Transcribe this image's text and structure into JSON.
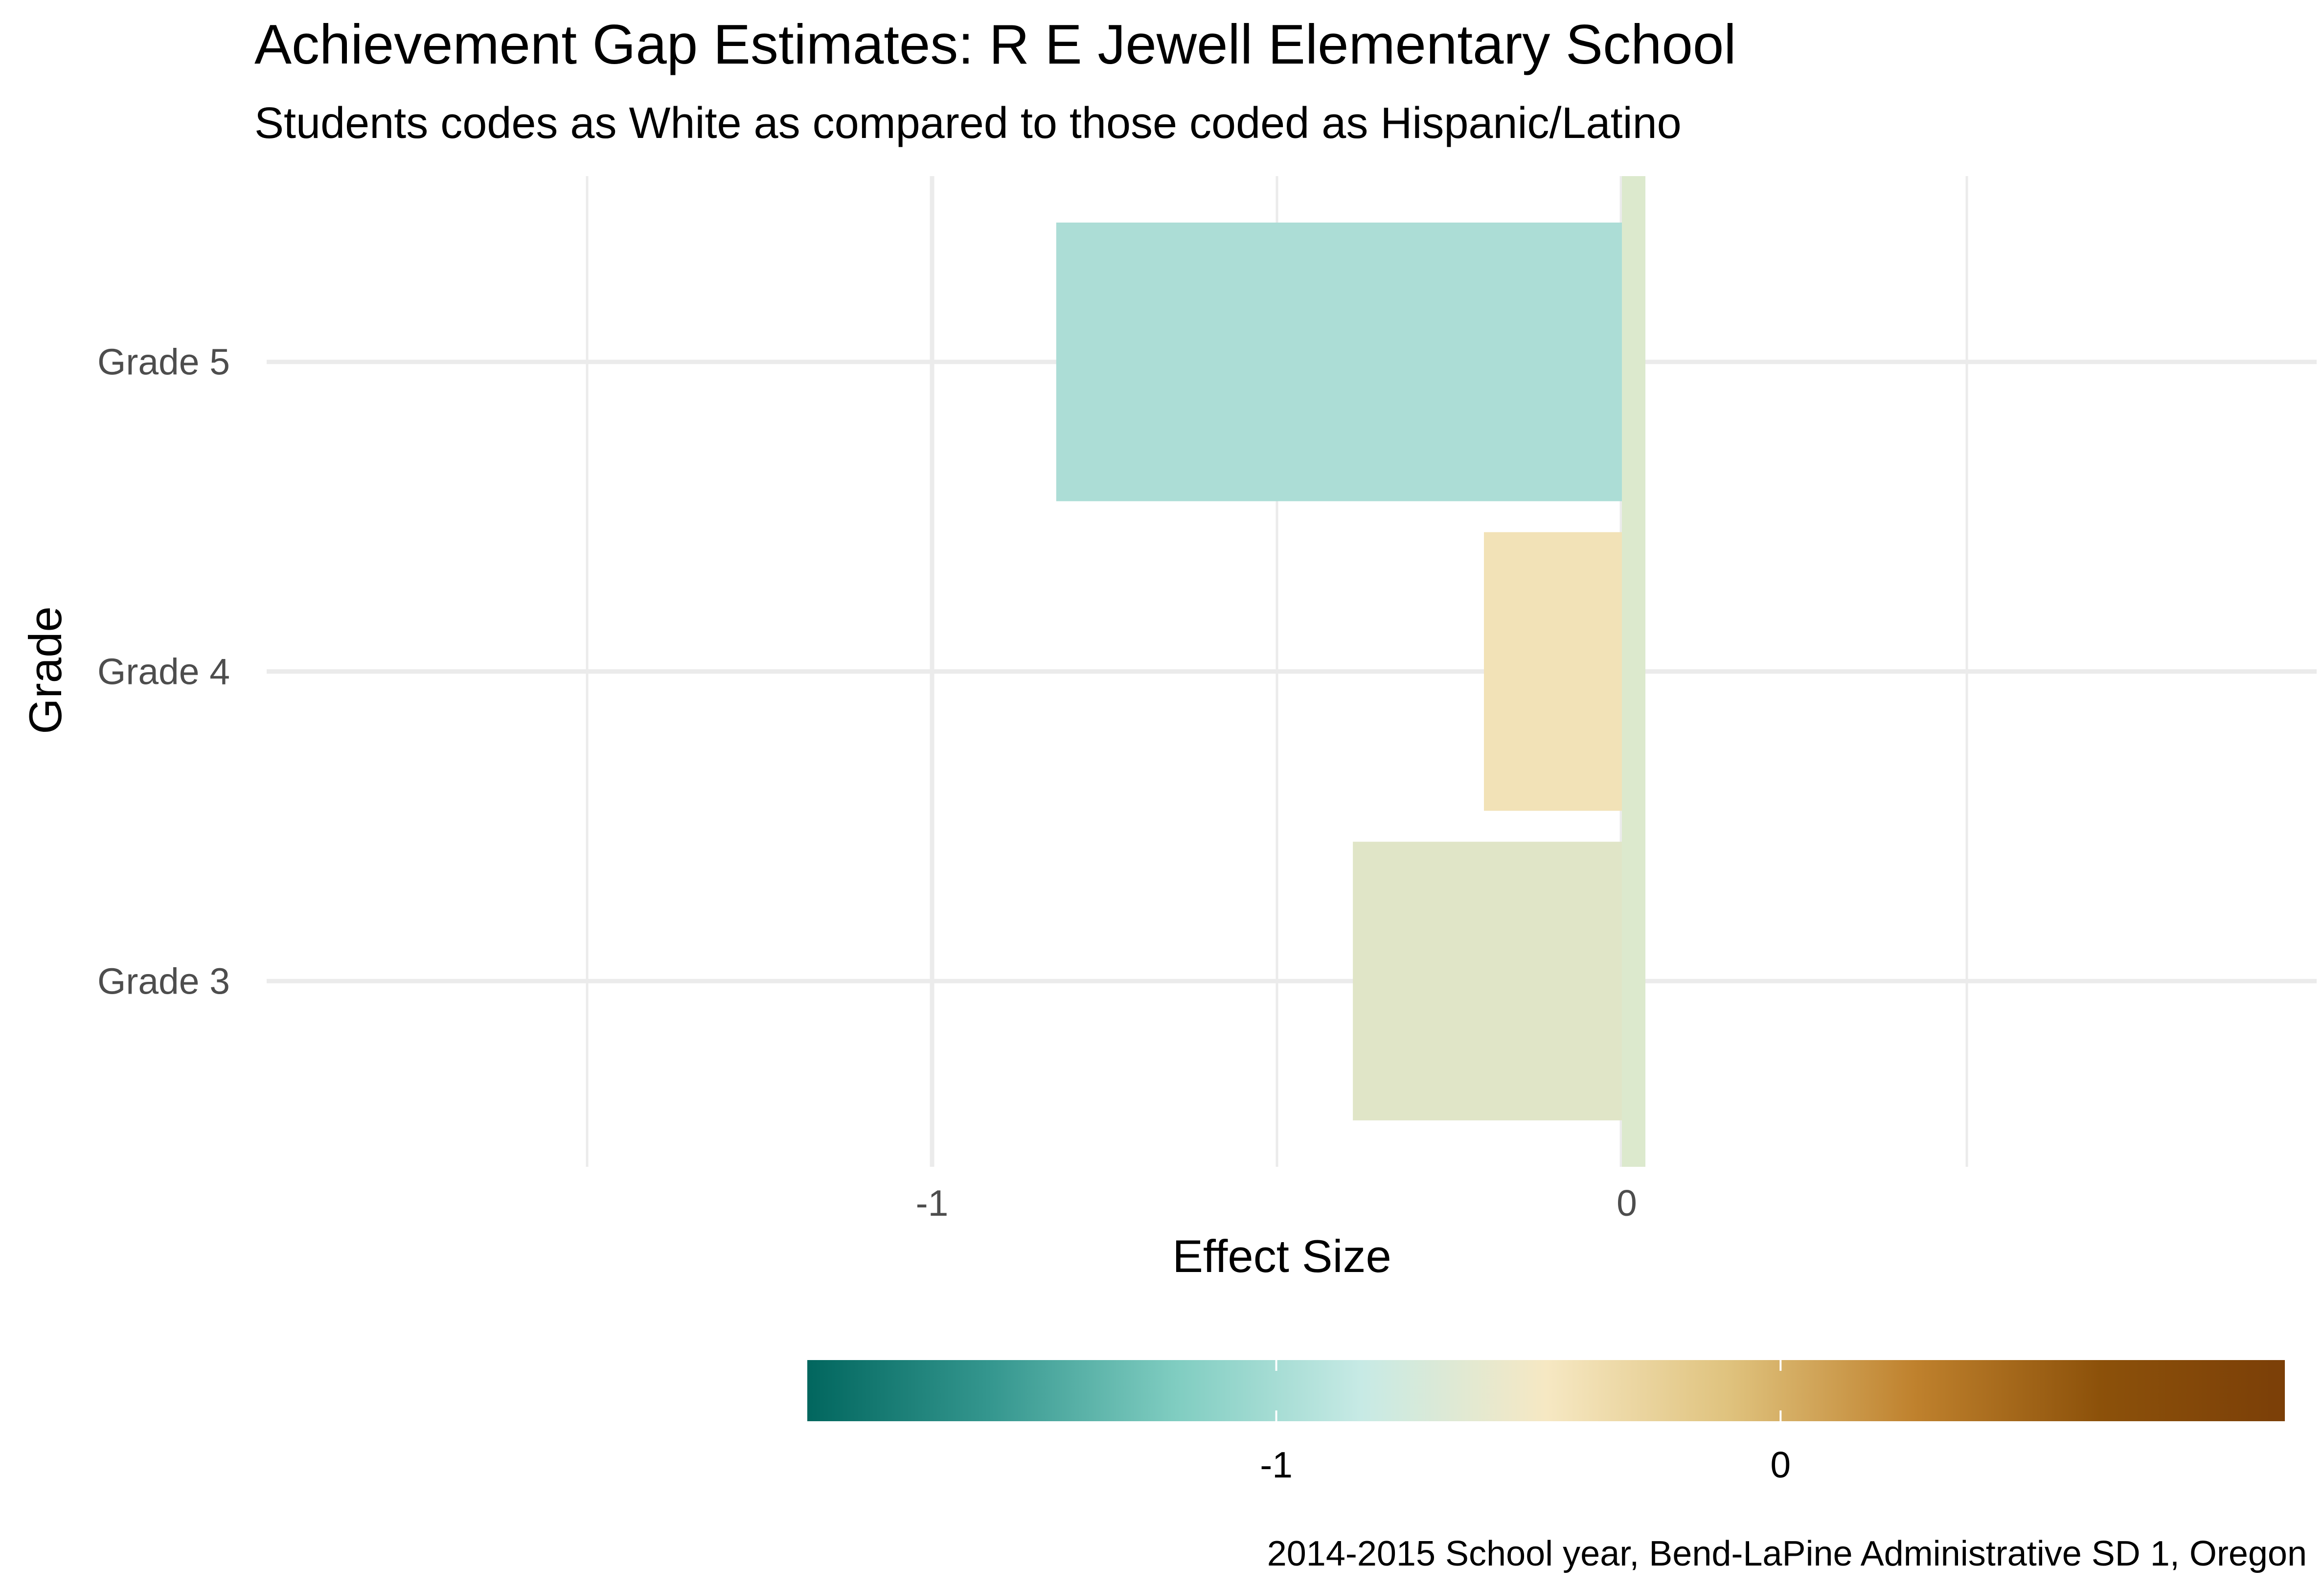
{
  "chart_data": {
    "type": "bar",
    "orientation": "horizontal",
    "title": "Achievement Gap Estimates: R E Jewell Elementary School",
    "subtitle": "Students codes as White as compared to those coded as Hispanic/Latino",
    "xlabel": "Effect Size",
    "ylabel": "Grade",
    "caption": "2014-2015 School year, Bend-LaPine Administrative SD 1, Oregon",
    "categories": [
      "Grade 3",
      "Grade 4",
      "Grade 5"
    ],
    "values": [
      -0.39,
      -0.2,
      -0.82
    ],
    "reference_line": {
      "x": 0,
      "color": "#dce9cd"
    },
    "xlim": [
      -1.5,
      1.0
    ],
    "x_ticks": [
      -1,
      0
    ],
    "x_tick_labels": [
      "-1",
      "0"
    ],
    "grid": true,
    "colors": {
      "Grade 3": "#e0e5c7",
      "Grade 4": "#f2e2b7",
      "Grade 5": "#acddd6"
    },
    "colorbar": {
      "position": "bottom",
      "range": [
        -1.93,
        1.0
      ],
      "ticks": [
        -1,
        0
      ],
      "tick_labels": [
        "-1",
        "0"
      ],
      "colors": [
        "#01665e",
        "#35978f",
        "#80cdc1",
        "#c7eae5",
        "#f6e8c3",
        "#dfc27d",
        "#bf812d",
        "#8c510a",
        "#7b3f08"
      ]
    }
  }
}
